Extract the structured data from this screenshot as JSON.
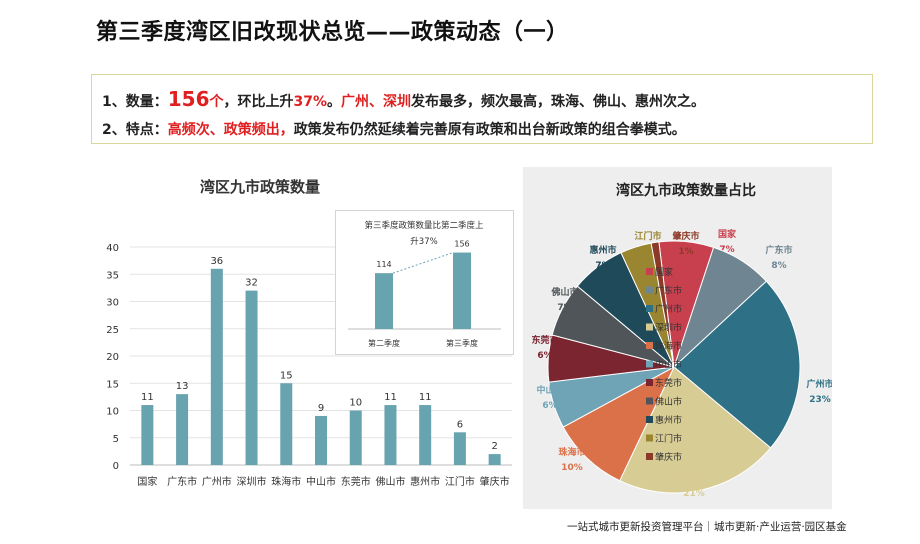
{
  "page": {
    "title": "第三季度湾区旧改现状总览——政策动态（一）",
    "footer": "一站式城市更新投资管理平台｜城市更新·产业运营·园区基金",
    "summary": {
      "l1_prefix": "1、数量：",
      "l1_count": "156",
      "l1_unit": "个",
      "l1_mid": "，环比上升",
      "l1_pct": "37%",
      "l1_sep": "。",
      "l1_cities": "广州、深圳",
      "l1_rest": "发布最多，频次最高，珠海、佛山、惠州次之。",
      "l2_prefix": "2、特点：",
      "l2_red": "高频次、政策频出，",
      "l2_rest": "政策发布仍然延续着完善原有政策和出台新政策的组合拳模式。"
    }
  },
  "chart_data": [
    {
      "type": "bar",
      "title": "湾区九市政策数量",
      "categories": [
        "国家",
        "广东市",
        "广州市",
        "深圳市",
        "珠海市",
        "中山市",
        "东莞市",
        "佛山市",
        "惠州市",
        "江门市",
        "肇庆市"
      ],
      "values": [
        11,
        13,
        36,
        32,
        15,
        9,
        10,
        11,
        11,
        6,
        2
      ],
      "ylim": [
        0,
        40
      ],
      "yticks": [
        0,
        5,
        10,
        15,
        20,
        25,
        30,
        35,
        40
      ],
      "color": "#68a3b0"
    },
    {
      "type": "bar",
      "title": "第三季度政策数量比第二季度上升37%",
      "categories": [
        "第二季度",
        "第三季度"
      ],
      "values": [
        114,
        156
      ],
      "color": "#68a3b0"
    },
    {
      "type": "pie",
      "title": "湾区九市政策数量占比",
      "labels": [
        "国家",
        "广东市",
        "广州市",
        "深圳市",
        "珠海市",
        "中山市",
        "东莞市",
        "佛山市",
        "惠州市",
        "江门市",
        "肇庆市"
      ],
      "values": [
        7,
        8,
        23,
        21,
        10,
        6,
        6,
        7,
        7,
        4,
        1
      ],
      "colors": [
        "#c8404e",
        "#6f8592",
        "#2e7186",
        "#d8cc95",
        "#db7149",
        "#6fa4b6",
        "#7a2530",
        "#4f5558",
        "#1f4a5a",
        "#9a8530",
        "#8c3a28"
      ],
      "legend": "right"
    }
  ]
}
